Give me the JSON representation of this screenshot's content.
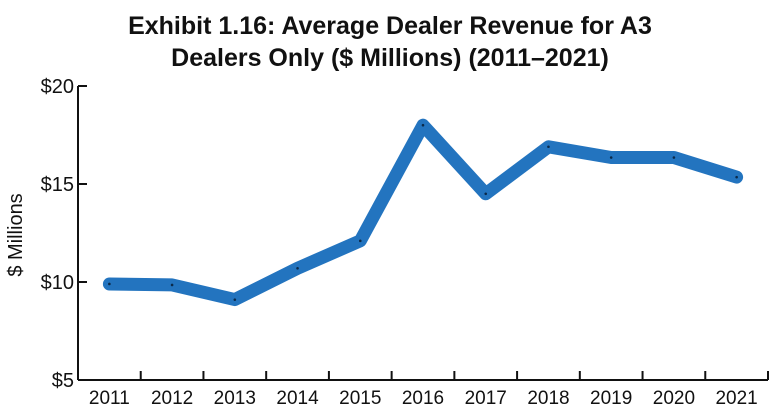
{
  "title": {
    "line1": "Exhibit 1.16: Average Dealer Revenue for A3",
    "line2": "Dealers Only ($ Millions) (2011–2021)"
  },
  "chart_data": {
    "type": "line",
    "title": "Exhibit 1.16: Average Dealer Revenue for A3 Dealers Only ($ Millions) (2011–2021)",
    "xlabel": "",
    "ylabel": "$ Millions",
    "categories": [
      "2011",
      "2012",
      "2013",
      "2014",
      "2015",
      "2016",
      "2017",
      "2018",
      "2019",
      "2020",
      "2021"
    ],
    "series": [
      {
        "values": [
          9.9,
          9.85,
          9.1,
          10.7,
          12.1,
          18.0,
          14.5,
          16.9,
          16.35,
          16.35,
          15.35
        ]
      }
    ],
    "ylim": [
      5,
      20
    ],
    "yticks": [
      5,
      10,
      15,
      20
    ],
    "ytick_labels": [
      "$5",
      "$10",
      "$15",
      "$20"
    ],
    "grid": false,
    "line_color": "#2374bf",
    "axis_color": "#111111"
  }
}
